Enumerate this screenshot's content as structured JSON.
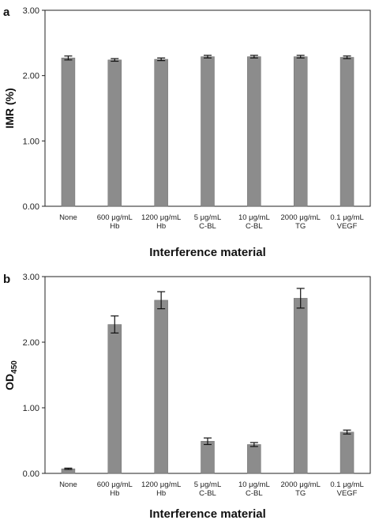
{
  "chart_data": [
    {
      "type": "bar",
      "panel": "a",
      "categories": [
        [
          "None"
        ],
        [
          "600 μg/mL",
          "Hb"
        ],
        [
          "1200 μg/mL",
          "Hb"
        ],
        [
          "5 μg/mL",
          "C-BL"
        ],
        [
          "10 μg/mL",
          "C-BL"
        ],
        [
          "2000 μg/mL",
          "TG"
        ],
        [
          "0.1 μg/mL",
          "VEGF"
        ]
      ],
      "values": [
        2.27,
        2.24,
        2.25,
        2.29,
        2.29,
        2.29,
        2.28
      ],
      "errors": [
        0.03,
        0.02,
        0.02,
        0.02,
        0.02,
        0.02,
        0.02
      ],
      "title": "",
      "xlabel": "Interference material",
      "ylabel": "IMR (%)",
      "ylabel_sub": "",
      "ylim": [
        0,
        3
      ],
      "yticks": [
        "0.00",
        "1.00",
        "2.00",
        "3.00"
      ],
      "ytick_values": [
        0,
        1,
        2,
        3
      ],
      "grid": false,
      "bar_color": "#8c8c8c"
    },
    {
      "type": "bar",
      "panel": "b",
      "categories": [
        [
          "None"
        ],
        [
          "600 μg/mL",
          "Hb"
        ],
        [
          "1200 μg/mL",
          "Hb"
        ],
        [
          "5 μg/mL",
          "C-BL"
        ],
        [
          "10 μg/mL",
          "C-BL"
        ],
        [
          "2000 μg/mL",
          "TG"
        ],
        [
          "0.1 μg/mL",
          "VEGF"
        ]
      ],
      "values": [
        0.07,
        2.27,
        2.64,
        0.49,
        0.44,
        2.67,
        0.63
      ],
      "errors": [
        0.01,
        0.13,
        0.13,
        0.05,
        0.03,
        0.15,
        0.03
      ],
      "title": "",
      "xlabel": "Interference material",
      "ylabel": "OD",
      "ylabel_sub": "450",
      "ylim": [
        0,
        3
      ],
      "yticks": [
        "0.00",
        "1.00",
        "2.00",
        "3.00"
      ],
      "ytick_values": [
        0,
        1,
        2,
        3
      ],
      "grid": false,
      "bar_color": "#8c8c8c"
    }
  ]
}
